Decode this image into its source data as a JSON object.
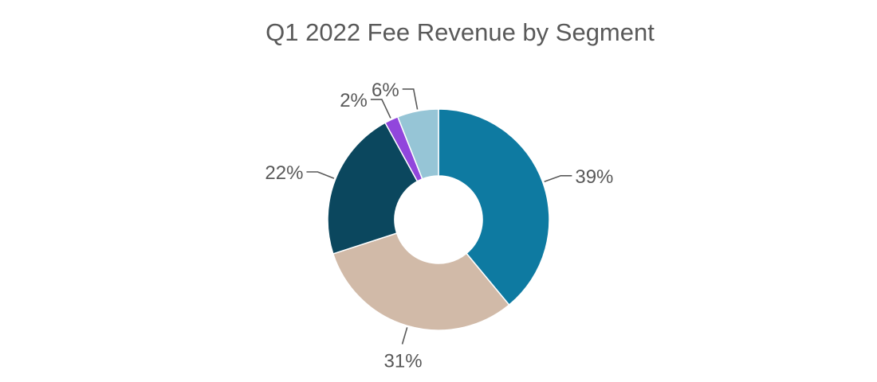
{
  "chart_data": {
    "type": "pie",
    "variant": "donut",
    "title": "Q1 2022 Fee Revenue by Segment",
    "legend": "none",
    "slices": [
      {
        "label": "39%",
        "value": 39,
        "color": "#0E7AA1"
      },
      {
        "label": "31%",
        "value": 31,
        "color": "#D1BAA8"
      },
      {
        "label": "22%",
        "value": 22,
        "color": "#0B475E"
      },
      {
        "label": "2%",
        "value": 2,
        "color": "#9146DC"
      },
      {
        "label": "6%",
        "value": 6,
        "color": "#96C5D6"
      }
    ]
  }
}
